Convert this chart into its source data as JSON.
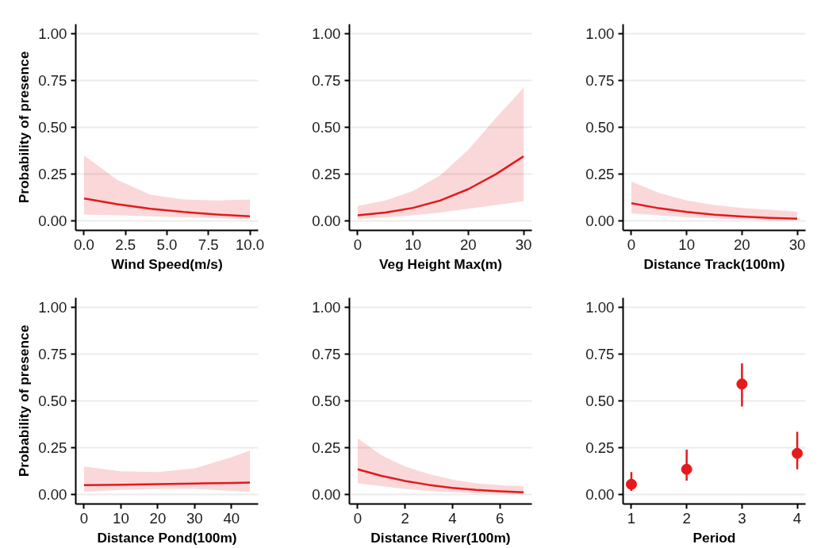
{
  "chart_data": [
    {
      "type": "line",
      "xlabel": "Wind Speed(m/s)",
      "ylabel": "Probability of presence",
      "xlim": [
        -0.5,
        10.5
      ],
      "xticks": [
        {
          "value": 0,
          "label": "0.0"
        },
        2.5,
        {
          "value": 5,
          "label": "5.0"
        },
        7.5,
        {
          "value": 10,
          "label": "10.0"
        }
      ],
      "ylim": [
        -0.05,
        1.05
      ],
      "yticks": [
        {
          "value": 0,
          "label": "0.00"
        },
        {
          "value": 0.25,
          "label": "0.25"
        },
        {
          "value": 0.5,
          "label": "0.50"
        },
        {
          "value": 0.75,
          "label": "0.75"
        },
        {
          "value": 1,
          "label": "1.00"
        }
      ],
      "grid": "y",
      "series": [
        {
          "color": "#e41a1c",
          "x": [
            0,
            2,
            4,
            6,
            8,
            10
          ],
          "values": [
            0.12,
            0.09,
            0.065,
            0.048,
            0.035,
            0.025
          ],
          "lower": [
            0.035,
            0.03,
            0.025,
            0.02,
            0.015,
            0.01
          ],
          "upper": [
            0.35,
            0.22,
            0.14,
            0.115,
            0.11,
            0.115
          ]
        }
      ]
    },
    {
      "type": "line",
      "xlabel": "Veg Height Max(m)",
      "xlim": [
        -1.5,
        31.5
      ],
      "xticks": [
        0,
        10,
        20,
        30
      ],
      "ylim": [
        -0.05,
        1.05
      ],
      "yticks": [
        {
          "value": 0,
          "label": "0.00"
        },
        {
          "value": 0.25,
          "label": "0.25"
        },
        {
          "value": 0.5,
          "label": "0.50"
        },
        {
          "value": 0.75,
          "label": "0.75"
        },
        {
          "value": 1,
          "label": "1.00"
        }
      ],
      "grid": "y",
      "series": [
        {
          "color": "#e41a1c",
          "x": [
            0,
            5,
            10,
            15,
            20,
            25,
            30
          ],
          "values": [
            0.03,
            0.045,
            0.07,
            0.11,
            0.17,
            0.25,
            0.345
          ],
          "lower": [
            0.01,
            0.02,
            0.03,
            0.045,
            0.065,
            0.085,
            0.105
          ],
          "upper": [
            0.08,
            0.11,
            0.16,
            0.245,
            0.38,
            0.55,
            0.71
          ]
        }
      ]
    },
    {
      "type": "line",
      "xlabel": "Distance Track(100m)",
      "xlim": [
        -1.5,
        31.5
      ],
      "xticks": [
        0,
        10,
        20,
        30
      ],
      "ylim": [
        -0.05,
        1.05
      ],
      "yticks": [
        {
          "value": 0,
          "label": "0.00"
        },
        {
          "value": 0.25,
          "label": "0.25"
        },
        {
          "value": 0.5,
          "label": "0.50"
        },
        {
          "value": 0.75,
          "label": "0.75"
        },
        {
          "value": 1,
          "label": "1.00"
        }
      ],
      "grid": "y",
      "series": [
        {
          "color": "#e41a1c",
          "x": [
            0,
            5,
            10,
            15,
            20,
            25,
            30
          ],
          "values": [
            0.095,
            0.068,
            0.048,
            0.034,
            0.024,
            0.017,
            0.012
          ],
          "lower": [
            0.04,
            0.03,
            0.02,
            0.013,
            0.008,
            0.005,
            0.003
          ],
          "upper": [
            0.21,
            0.15,
            0.11,
            0.085,
            0.07,
            0.06,
            0.05
          ]
        }
      ]
    },
    {
      "type": "line",
      "xlabel": "Distance Pond(100m)",
      "ylabel": "Probability of presence",
      "xlim": [
        -2.25,
        47.25
      ],
      "xticks": [
        0,
        10,
        20,
        30,
        40
      ],
      "ylim": [
        -0.05,
        1.05
      ],
      "yticks": [
        {
          "value": 0,
          "label": "0.00"
        },
        {
          "value": 0.25,
          "label": "0.25"
        },
        {
          "value": 0.5,
          "label": "0.50"
        },
        {
          "value": 0.75,
          "label": "0.75"
        },
        {
          "value": 1,
          "label": "1.00"
        }
      ],
      "grid": "y",
      "series": [
        {
          "color": "#e41a1c",
          "x": [
            0,
            10,
            20,
            30,
            40,
            45
          ],
          "values": [
            0.05,
            0.053,
            0.056,
            0.059,
            0.062,
            0.064
          ],
          "lower": [
            0.015,
            0.025,
            0.03,
            0.03,
            0.02,
            0.015
          ],
          "upper": [
            0.15,
            0.125,
            0.12,
            0.14,
            0.2,
            0.235
          ]
        }
      ]
    },
    {
      "type": "line",
      "xlabel": "Distance River(100m)",
      "xlim": [
        -0.35,
        7.35
      ],
      "xticks": [
        0,
        2,
        4,
        6
      ],
      "ylim": [
        -0.05,
        1.05
      ],
      "yticks": [
        {
          "value": 0,
          "label": "0.00"
        },
        {
          "value": 0.25,
          "label": "0.25"
        },
        {
          "value": 0.5,
          "label": "0.50"
        },
        {
          "value": 0.75,
          "label": "0.75"
        },
        {
          "value": 1,
          "label": "1.00"
        }
      ],
      "grid": "y",
      "series": [
        {
          "color": "#e41a1c",
          "x": [
            0,
            1,
            2,
            3,
            4,
            5,
            6,
            7
          ],
          "values": [
            0.135,
            0.1,
            0.073,
            0.052,
            0.036,
            0.025,
            0.018,
            0.012
          ],
          "lower": [
            0.06,
            0.045,
            0.03,
            0.02,
            0.012,
            0.007,
            0.004,
            0.002
          ],
          "upper": [
            0.3,
            0.21,
            0.15,
            0.11,
            0.08,
            0.06,
            0.05,
            0.045
          ]
        }
      ]
    },
    {
      "type": "scatter",
      "xlabel": "Period",
      "xlim": [
        0.85,
        4.15
      ],
      "xticks": [
        1,
        2,
        3,
        4
      ],
      "ylim": [
        -0.05,
        1.05
      ],
      "yticks": [
        {
          "value": 0,
          "label": "0.00"
        },
        {
          "value": 0.25,
          "label": "0.25"
        },
        {
          "value": 0.5,
          "label": "0.50"
        },
        {
          "value": 0.75,
          "label": "0.75"
        },
        {
          "value": 1,
          "label": "1.00"
        }
      ],
      "grid": "y",
      "marker": "circle",
      "series": [
        {
          "color": "#e41a1c",
          "x": [
            1,
            2,
            3,
            4
          ],
          "values": [
            0.055,
            0.135,
            0.59,
            0.22
          ],
          "errors": [
            [
              0.02,
              0.12
            ],
            [
              0.075,
              0.24
            ],
            [
              0.47,
              0.7
            ],
            [
              0.135,
              0.335
            ]
          ]
        }
      ]
    }
  ]
}
